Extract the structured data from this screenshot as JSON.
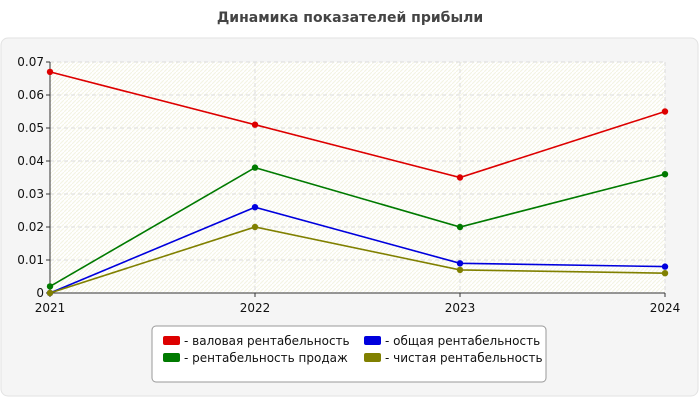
{
  "chart_data": {
    "type": "line",
    "title": "Динамика показателей прибыли",
    "xlabel": "",
    "ylabel": "",
    "categories": [
      "2021",
      "2022",
      "2023",
      "2024"
    ],
    "ylim": [
      0,
      0.07
    ],
    "yticks": [
      "0",
      "0.01",
      "0.02",
      "0.03",
      "0.04",
      "0.05",
      "0.06",
      "0.07"
    ],
    "grid": true,
    "legend_position": "bottom",
    "series": [
      {
        "name": "- валовая рентабельность",
        "color": "#dd0000",
        "values": [
          0.067,
          0.051,
          0.035,
          0.055
        ]
      },
      {
        "name": "- общая рентабельность",
        "color": "#0000dd",
        "values": [
          0.0,
          0.026,
          0.009,
          0.008
        ]
      },
      {
        "name": "- рентабельность продаж",
        "color": "#007a00",
        "values": [
          0.002,
          0.038,
          0.02,
          0.036
        ]
      },
      {
        "name": "- чистая рентабельность",
        "color": "#808000",
        "values": [
          0.0,
          0.02,
          0.007,
          0.006
        ]
      }
    ]
  }
}
